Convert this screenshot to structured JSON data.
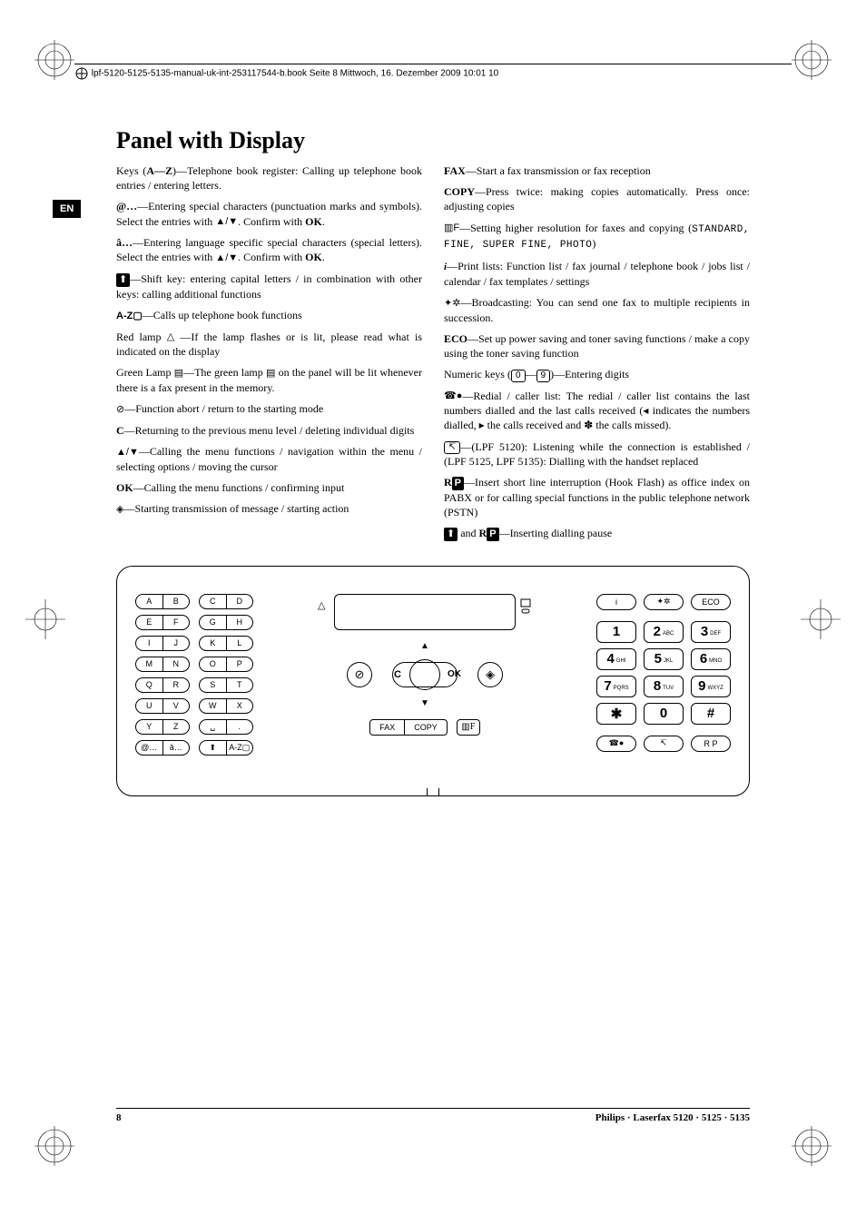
{
  "header_text": "lpf-5120-5125-5135-manual-uk-int-253117544-b.book  Seite 8  Mittwoch, 16. Dezember 2009  10:01 10",
  "lang_tab": "EN",
  "title": "Panel with Display",
  "left_col": {
    "p1_pre": "Keys (",
    "p1_bold": "A—Z",
    "p1_post": ")—Telephone book register: Calling up telephone book entries / entering letters.",
    "p2_bold": "@…",
    "p2_text": "—Entering special characters (punctuation marks and symbols). Select the entries with ",
    "p2_arrows": "▲/▼",
    "p2_text2": ". Confirm with ",
    "p2_ok": "OK",
    "p2_period": ".",
    "p3_bold": "â…",
    "p3_text": "—Entering language specific special characters (special letters). Select the entries with ",
    "p3_arrows": "▲/▼",
    "p3_text2": ". Confirm with ",
    "p3_ok": "OK",
    "p3_period": ".",
    "p4_icon": "⬆",
    "p4_text": "—Shift key: entering capital letters / in combination with other keys: calling additional functions",
    "p5_bold": "A-Z▢",
    "p5_text": "—Calls up telephone book functions",
    "p6_pre": "Red lamp ",
    "p6_icon": "△",
    "p6_text": " —If the lamp flashes or is lit, please read what is indicated on the display",
    "p7_pre": "Green Lamp ",
    "p7_icon": "▤",
    "p7_mid": "—The green lamp ",
    "p7_icon2": "▤",
    "p7_text": " on the panel will be lit whenever there is a fax present in the memory.",
    "p8_icon": "⊘",
    "p8_text": "—Function abort / return to the starting mode",
    "p9_bold": "C",
    "p9_text": "—Returning to the previous menu level / deleting individual digits",
    "p10_arrows": "▲/▼",
    "p10_text": "—Calling the menu functions / navigation within the menu / selecting options / moving the cursor",
    "p11_bold": "OK",
    "p11_text": "—Calling the menu functions / confirming input",
    "p12_icon": "◈",
    "p12_text": "—Starting transmission of message / starting action"
  },
  "right_col": {
    "p1_bold": "FAX",
    "p1_text": "—Start a fax transmission or fax reception",
    "p2_bold": "COPY",
    "p2_text": "—Press twice: making copies automatically. Press once: adjusting copies",
    "p3_icon": "▥F",
    "p3_text": "—Setting higher resolution for faxes and copying (",
    "p3_modes": "STANDARD, FINE, SUPER FINE, PHOTO",
    "p3_close": ")",
    "p4_icon": "i",
    "p4_text": "—Print lists: Function list / fax journal / telephone book / jobs list / calendar / fax templates / settings",
    "p5_icon": "✦✲",
    "p5_text": "—Broadcasting: You can send one fax to multiple recipients in succession.",
    "p6_bold": "ECO",
    "p6_text": "—Set up power saving and toner saving functions / make a copy using the toner saving function",
    "p7_pre": "Numeric keys (",
    "p7_k0": "0",
    "p7_dash": "—",
    "p7_k9": "9",
    "p7_post": ")—Entering digits",
    "p8_icon": "☎●",
    "p8_text": "—Redial / caller list: The redial / caller list contains the last numbers dialled and the last calls received (◂ indicates the numbers dialled, ▸ the calls received and ✽ the calls missed).",
    "p9_icon": "↸",
    "p9_text": "—(LPF 5120): Listening while the connection is established / (LPF 5125, LPF 5135): Dialling with the handset replaced",
    "p10_bold": "R",
    "p10_icon": "P",
    "p10_text": "—Insert short line interruption (Hook Flash) as office index on PABX or for calling special functions in the public telephone network (PSTN)",
    "p11_icon1": "⬆",
    "p11_and": " and ",
    "p11_bold": "R",
    "p11_icon2": "P",
    "p11_text": "—Inserting dialling pause"
  },
  "panel": {
    "letter_rows": [
      [
        "A",
        "B",
        "C",
        "D"
      ],
      [
        "E",
        "F",
        "G",
        "H"
      ],
      [
        "I",
        "J",
        "K",
        "L"
      ],
      [
        "M",
        "N",
        "O",
        "P"
      ],
      [
        "Q",
        "R",
        "S",
        "T"
      ],
      [
        "U",
        "V",
        "W",
        "X"
      ],
      [
        "Y",
        "Z",
        "␣",
        "."
      ],
      [
        "@…",
        "â…",
        "⬆",
        "A-Z▢"
      ]
    ],
    "nav_c": "C",
    "nav_ok": "OK",
    "fax": "FAX",
    "copy": "COPY",
    "top_pills": [
      "i",
      "✦✲",
      "ECO"
    ],
    "num_rows": [
      [
        {
          "n": "1",
          "s": ""
        },
        {
          "n": "2",
          "s": "ABC"
        },
        {
          "n": "3",
          "s": "DEF"
        }
      ],
      [
        {
          "n": "4",
          "s": "GHI"
        },
        {
          "n": "5",
          "s": "JKL"
        },
        {
          "n": "6",
          "s": "MNO"
        }
      ],
      [
        {
          "n": "7",
          "s": "PQRS"
        },
        {
          "n": "8",
          "s": "TUV"
        },
        {
          "n": "9",
          "s": "WXYZ"
        }
      ],
      [
        {
          "n": "✱",
          "s": ""
        },
        {
          "n": "0",
          "s": ""
        },
        {
          "n": "#",
          "s": ""
        }
      ]
    ],
    "bottom_pills": [
      "☎●",
      "↸",
      "R P"
    ]
  },
  "footer": {
    "page": "8",
    "brand": "Philips · Laserfax 5120 · 5125 · 5135"
  }
}
